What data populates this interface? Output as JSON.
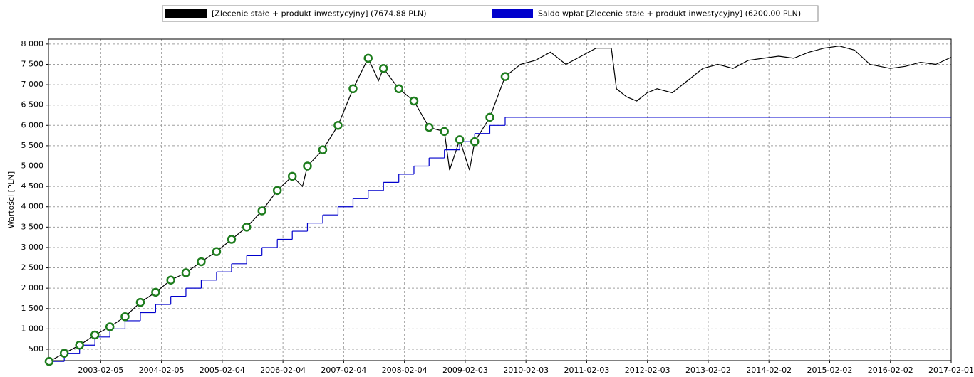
{
  "chart_data": {
    "type": "line",
    "ylabel": "Wartości [PLN]",
    "xlim": [
      "2002-03-28",
      "2017-02-01"
    ],
    "xticks": [
      "2003-02-05",
      "2004-02-05",
      "2005-02-04",
      "2006-02-04",
      "2007-02-04",
      "2008-02-04",
      "2009-02-03",
      "2010-02-03",
      "2011-02-03",
      "2012-02-03",
      "2013-02-02",
      "2014-02-02",
      "2015-02-02",
      "2016-02-02",
      "2017-02-01"
    ],
    "ylim": [
      220,
      8120
    ],
    "yticks": [
      500,
      {
        "value": 1000,
        "label": "1 000"
      },
      {
        "value": 1500,
        "label": "1 500"
      },
      {
        "value": 2000,
        "label": "2 000"
      },
      {
        "value": 2500,
        "label": "2 500"
      },
      {
        "value": 3000,
        "label": "3 000"
      },
      {
        "value": 3500,
        "label": "3 500"
      },
      {
        "value": 4000,
        "label": "4 000"
      },
      {
        "value": 4500,
        "label": "4 500"
      },
      {
        "value": 5000,
        "label": "5 000"
      },
      {
        "value": 5500,
        "label": "5 500"
      },
      {
        "value": 6000,
        "label": "6 000"
      },
      {
        "value": 6500,
        "label": "6 500"
      },
      {
        "value": 7000,
        "label": "7 000"
      },
      {
        "value": 7500,
        "label": "7 500"
      },
      {
        "value": 8000,
        "label": "8 000"
      }
    ],
    "grid": true,
    "legend": "top",
    "series": [
      {
        "name": "[Zlecenie stałe + produkt inwestycyjny] (7674.88 PLN)",
        "color": "#000000",
        "x": [
          "2002-04",
          "2002-07",
          "2002-10",
          "2003-01",
          "2003-04",
          "2003-07",
          "2003-10",
          "2004-01",
          "2004-04",
          "2004-07",
          "2004-10",
          "2005-01",
          "2005-04",
          "2005-07",
          "2005-10",
          "2006-01",
          "2006-04",
          "2006-06",
          "2006-07",
          "2006-10",
          "2007-01",
          "2007-04",
          "2007-07",
          "2007-09",
          "2007-10",
          "2008-01",
          "2008-04",
          "2008-07",
          "2008-10",
          "2008-11",
          "2009-01",
          "2009-03",
          "2009-04",
          "2009-07",
          "2009-10",
          "2010-01",
          "2010-04",
          "2010-07",
          "2010-10",
          "2011-01",
          "2011-04",
          "2011-07",
          "2011-08",
          "2011-10",
          "2011-12",
          "2012-02",
          "2012-04",
          "2012-07",
          "2012-10",
          "2013-01",
          "2013-04",
          "2013-07",
          "2013-10",
          "2014-01",
          "2014-04",
          "2014-07",
          "2014-10",
          "2015-01",
          "2015-04",
          "2015-07",
          "2015-10",
          "2016-02",
          "2016-05",
          "2016-08",
          "2016-11",
          "2017-02-01"
        ],
        "values": [
          200,
          400,
          600,
          850,
          1050,
          1300,
          1650,
          1900,
          2200,
          2380,
          2650,
          2900,
          3200,
          3500,
          3900,
          4400,
          4750,
          4500,
          5000,
          5400,
          6000,
          6900,
          7650,
          7100,
          7400,
          6900,
          6600,
          5950,
          5850,
          4900,
          5650,
          4900,
          5600,
          6200,
          7200,
          7500,
          7600,
          7800,
          7500,
          7700,
          7900,
          7900,
          6900,
          6700,
          6600,
          6800,
          6900,
          6800,
          7100,
          7400,
          7500,
          7400,
          7600,
          7650,
          7700,
          7650,
          7800,
          7900,
          7950,
          7850,
          7500,
          7400,
          7450,
          7550,
          7500,
          7675
        ]
      },
      {
        "name": "Saldo wpłat [Zlecenie stałe + produkt inwestycyjny] (6200.00 PLN)",
        "color": "#0000cc",
        "step": true,
        "x": [
          "2002-04",
          "2002-07",
          "2002-10",
          "2003-01",
          "2003-04",
          "2003-07",
          "2003-10",
          "2004-01",
          "2004-04",
          "2004-07",
          "2004-10",
          "2005-01",
          "2005-04",
          "2005-07",
          "2005-10",
          "2006-01",
          "2006-04",
          "2006-07",
          "2006-10",
          "2007-01",
          "2007-04",
          "2007-07",
          "2007-10",
          "2008-01",
          "2008-04",
          "2008-07",
          "2008-10",
          "2009-01",
          "2009-04",
          "2009-07",
          "2009-10",
          "2017-02-01"
        ],
        "values": [
          200,
          400,
          600,
          800,
          1000,
          1200,
          1400,
          1600,
          1800,
          2000,
          2200,
          2400,
          2600,
          2800,
          3000,
          3200,
          3400,
          3600,
          3800,
          4000,
          4200,
          4400,
          4600,
          4800,
          5000,
          5200,
          5400,
          5600,
          5800,
          6000,
          6200,
          6200
        ]
      }
    ],
    "markers": {
      "color": "#1e7d1e",
      "x": [
        "2002-04",
        "2002-07",
        "2002-10",
        "2003-01",
        "2003-04",
        "2003-07",
        "2003-10",
        "2004-01",
        "2004-04",
        "2004-07",
        "2004-10",
        "2005-01",
        "2005-04",
        "2005-07",
        "2005-10",
        "2006-01",
        "2006-04",
        "2006-07",
        "2006-10",
        "2007-01",
        "2007-04",
        "2007-07",
        "2007-10",
        "2008-01",
        "2008-04",
        "2008-07",
        "2008-10",
        "2009-01",
        "2009-04",
        "2009-07",
        "2009-10"
      ],
      "values": [
        200,
        400,
        600,
        850,
        1050,
        1300,
        1650,
        1900,
        2200,
        2380,
        2650,
        2900,
        3200,
        3500,
        3900,
        4400,
        4750,
        5000,
        5400,
        6000,
        6900,
        7650,
        7400,
        6900,
        6600,
        5950,
        5850,
        5650,
        5600,
        6200,
        7200
      ]
    }
  }
}
